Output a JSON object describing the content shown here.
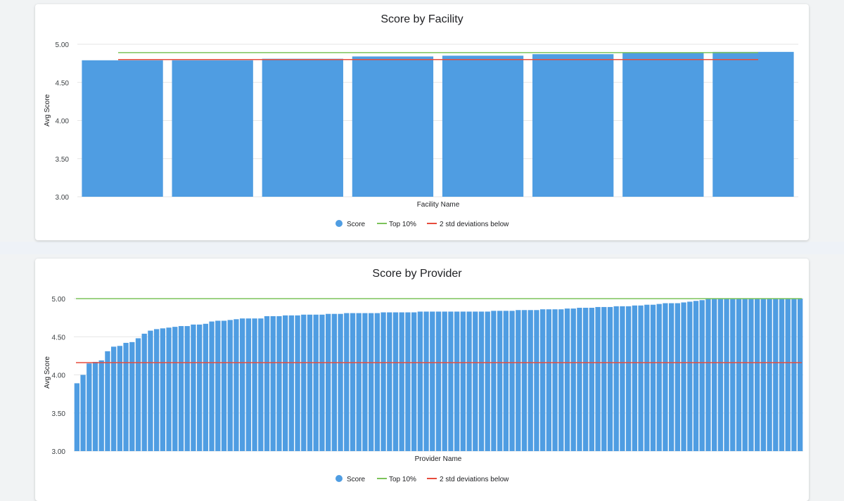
{
  "colors": {
    "score": "#4f9de2",
    "top": "#7cc35a",
    "std": "#e74c3c",
    "grid": "#e6e6e6"
  },
  "charts": [
    {
      "chart_data": {
        "type": "bar",
        "title": "Score by Facility",
        "xlabel": "Facility Name",
        "ylabel": "Avg Score",
        "ylim": [
          3.0,
          5.0
        ],
        "yticks": [
          "5.00",
          "4.50",
          "4.00",
          "3.50",
          "3.00"
        ],
        "grid": true,
        "legend_position": "bottom",
        "series": [
          {
            "name": "Score",
            "type": "bar",
            "values": [
              4.79,
              4.79,
              4.81,
              4.84,
              4.85,
              4.87,
              4.89,
              4.9
            ]
          },
          {
            "name": "Top 10%",
            "type": "line",
            "values": [
              4.89,
              4.89,
              4.89,
              4.89,
              4.89,
              4.89,
              4.89,
              4.89
            ]
          },
          {
            "name": "2 std deviations below",
            "type": "line",
            "values": [
              4.8,
              4.8,
              4.8,
              4.8,
              4.8,
              4.8,
              4.8,
              4.8
            ]
          }
        ]
      }
    },
    {
      "chart_data": {
        "type": "bar",
        "title": "Score by Provider",
        "xlabel": "Provider Name",
        "ylabel": "Avg Score",
        "ylim": [
          3.0,
          5.0
        ],
        "yticks": [
          "5.00",
          "4.50",
          "4.00",
          "3.50",
          "3.00"
        ],
        "grid": true,
        "legend_position": "bottom",
        "series": [
          {
            "name": "Score",
            "type": "bar",
            "values": [
              3.89,
              4.0,
              4.15,
              4.17,
              4.19,
              4.31,
              4.37,
              4.38,
              4.42,
              4.43,
              4.48,
              4.54,
              4.58,
              4.6,
              4.61,
              4.62,
              4.63,
              4.64,
              4.64,
              4.66,
              4.66,
              4.67,
              4.7,
              4.71,
              4.71,
              4.72,
              4.73,
              4.74,
              4.74,
              4.74,
              4.74,
              4.77,
              4.77,
              4.77,
              4.78,
              4.78,
              4.78,
              4.79,
              4.79,
              4.79,
              4.79,
              4.8,
              4.8,
              4.8,
              4.81,
              4.81,
              4.81,
              4.81,
              4.81,
              4.81,
              4.82,
              4.82,
              4.82,
              4.82,
              4.82,
              4.82,
              4.83,
              4.83,
              4.83,
              4.83,
              4.83,
              4.83,
              4.83,
              4.83,
              4.83,
              4.83,
              4.83,
              4.83,
              4.84,
              4.84,
              4.84,
              4.84,
              4.85,
              4.85,
              4.85,
              4.85,
              4.86,
              4.86,
              4.86,
              4.86,
              4.87,
              4.87,
              4.88,
              4.88,
              4.88,
              4.89,
              4.89,
              4.89,
              4.9,
              4.9,
              4.9,
              4.91,
              4.91,
              4.92,
              4.92,
              4.93,
              4.94,
              4.94,
              4.94,
              4.95,
              4.96,
              4.97,
              4.98,
              5.0,
              5.0,
              5.0,
              5.0,
              5.0,
              5.0,
              5.0,
              5.0,
              5.0,
              5.0,
              5.0,
              5.0,
              5.0,
              5.0,
              5.0,
              5.0
            ]
          },
          {
            "name": "Top 10%",
            "type": "line",
            "value": 5.0
          },
          {
            "name": "2 std deviations below",
            "type": "line",
            "value": 4.16
          }
        ]
      }
    }
  ]
}
